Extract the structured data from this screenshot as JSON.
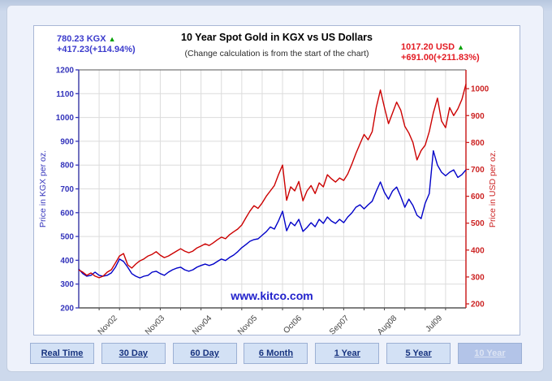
{
  "header": {
    "kgx_quote": {
      "price": "780.23 KGX",
      "change": "+417.23(+114.94%)",
      "arrow": "up"
    },
    "title": "10 Year Spot Gold in KGX vs US Dollars",
    "subtitle": "(Change calculation is from the start of the chart)",
    "usd_quote": {
      "price": "1017.20 USD",
      "change": "+691.00(+211.83%)",
      "arrow": "up"
    }
  },
  "chart_data": {
    "type": "line",
    "title": "10 Year Spot Gold in KGX vs US Dollars",
    "subtitle": "(Change calculation is from the start of the chart)",
    "watermark": "www.kitco.com",
    "grid": {
      "on": true,
      "color": "#dcdcdc",
      "v_divisions": 19
    },
    "left_axis": {
      "label": "Price in KGX per oz.",
      "min": 200,
      "max": 1200,
      "ticks": [
        200,
        300,
        400,
        500,
        600,
        700,
        800,
        900,
        1000,
        1100,
        1200
      ],
      "color": "#3434bb"
    },
    "right_axis": {
      "label": "Price in USD per oz.",
      "render_min": 185,
      "render_max": 1070,
      "ticks": [
        200,
        300,
        400,
        500,
        600,
        700,
        800,
        900,
        1000
      ],
      "color": "#cc2222"
    },
    "x_axis": {
      "labels": [
        "Nov02",
        "Nov03",
        "Nov04",
        "Nov05",
        "Oct06",
        "Sep07",
        "Aug08",
        "Jul09"
      ],
      "positions": [
        0.094,
        0.216,
        0.338,
        0.455,
        0.57,
        0.692,
        0.816,
        0.933
      ],
      "color": "#444444"
    },
    "series": [
      {
        "name": "Spot Gold in KGX",
        "axis": "left",
        "color": "#0000c8",
        "start_value": 363.0,
        "end_value": 780.23,
        "values": [
          363,
          344,
          333,
          337,
          350,
          337,
          333,
          337,
          347,
          371,
          405,
          395,
          371,
          344,
          333,
          326,
          333,
          337,
          350,
          354,
          344,
          337,
          350,
          360,
          367,
          371,
          360,
          354,
          360,
          371,
          378,
          384,
          378,
          384,
          395,
          405,
          399,
          412,
          422,
          436,
          453,
          466,
          480,
          487,
          490,
          505,
          520,
          540,
          531,
          565,
          606,
          524,
          560,
          545,
          572,
          521,
          538,
          558,
          541,
          572,
          555,
          582,
          565,
          555,
          572,
          558,
          582,
          599,
          623,
          633,
          616,
          633,
          648,
          690,
          729,
          685,
          657,
          691,
          708,
          668,
          623,
          657,
          630,
          589,
          575,
          640,
          680,
          860,
          800,
          770,
          755,
          770,
          780,
          748,
          760,
          780
        ]
      },
      {
        "name": "Spot Gold in US Dollars",
        "axis": "right",
        "color": "#cc0000",
        "start_value": 326.2,
        "end_value": 1017.2,
        "values": [
          326,
          318,
          306,
          315,
          303,
          297,
          303,
          318,
          327,
          352,
          378,
          387,
          345,
          333,
          348,
          360,
          367,
          378,
          384,
          394,
          381,
          372,
          378,
          387,
          396,
          405,
          396,
          390,
          396,
          408,
          415,
          423,
          417,
          427,
          438,
          448,
          442,
          457,
          468,
          478,
          493,
          520,
          545,
          565,
          555,
          575,
          600,
          620,
          640,
          680,
          716,
          585,
          635,
          620,
          655,
          583,
          620,
          640,
          610,
          650,
          635,
          680,
          665,
          653,
          668,
          659,
          683,
          719,
          759,
          795,
          830,
          810,
          840,
          930,
          995,
          930,
          870,
          910,
          950,
          920,
          860,
          835,
          800,
          735,
          770,
          790,
          840,
          910,
          965,
          880,
          855,
          930,
          900,
          925,
          960,
          1017
        ]
      }
    ]
  },
  "buttons": [
    {
      "label": "Real Time",
      "selected": false
    },
    {
      "label": "30 Day",
      "selected": false
    },
    {
      "label": "60 Day",
      "selected": false
    },
    {
      "label": "6 Month",
      "selected": false
    },
    {
      "label": "1 Year",
      "selected": false
    },
    {
      "label": "5 Year",
      "selected": false
    },
    {
      "label": "10 Year",
      "selected": true
    }
  ]
}
